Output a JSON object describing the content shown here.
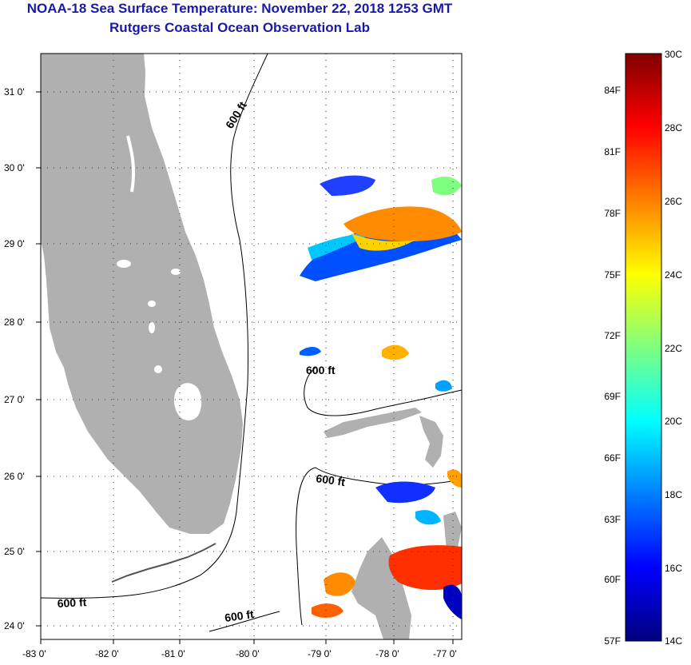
{
  "header": {
    "title": "NOAA-18 Sea Surface Temperature:  November 22, 2018 1253 GMT",
    "subtitle": "Rutgers Coastal Ocean Observation Lab"
  },
  "map": {
    "lon_labels": [
      "-83 0'",
      "-82 0'",
      "-81 0'",
      "-80 0'",
      "-79 0'",
      "-78 0'",
      "-77 0'"
    ],
    "lat_labels": [
      "24 0'",
      "25 0'",
      "26 0'",
      "27 0'",
      "28 0'",
      "29 0'",
      "30 0'",
      "31 0'"
    ],
    "lon_range": [
      -83,
      -76.85
    ],
    "lat_range": [
      23.8,
      31.4
    ],
    "contour_labels": [
      "600 ft",
      "600 ft",
      "600 ft",
      "600 ft",
      "600 ft"
    ],
    "land_color": "#b0b0b0",
    "grid": "dotted"
  },
  "colorbar": {
    "range_c": [
      14,
      30
    ],
    "f_labels": [
      "84F",
      "81F",
      "78F",
      "75F",
      "72F",
      "69F",
      "66F",
      "63F",
      "60F",
      "57F"
    ],
    "c_labels": [
      "30C",
      "28C",
      "26C",
      "24C",
      "22C",
      "20C",
      "18C",
      "16C",
      "14C"
    ],
    "colors": [
      "#00007f",
      "#0000ff",
      "#007fff",
      "#00ffff",
      "#7fff7f",
      "#ffff00",
      "#ff7f00",
      "#ff0000",
      "#7f0000"
    ]
  }
}
